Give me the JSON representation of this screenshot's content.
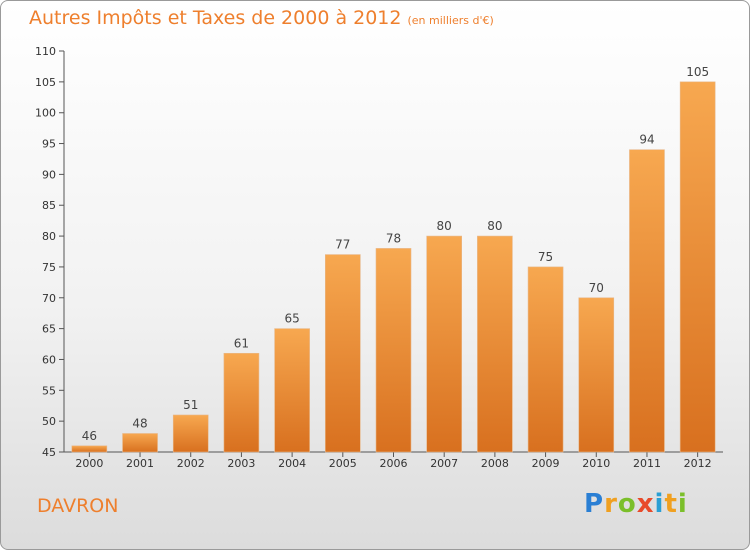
{
  "title": "Autres Impôts et Taxes de 2000 à 2012",
  "subtitle": "(en milliers d'€)",
  "location": "DAVRON",
  "brand": {
    "letters": [
      "P",
      "r",
      "o",
      "x",
      "i",
      "t",
      "i"
    ],
    "colors": [
      "#2a7fd4",
      "#f0a020",
      "#7bbf2a",
      "#e84a2a",
      "#2a9fd4",
      "#f0a020",
      "#7bbf2a"
    ]
  },
  "colors": {
    "bar_light": "#f7a850",
    "bar_dark": "#d8701f",
    "text_accent": "#ee7f2d",
    "axis": "#555555"
  },
  "chart_data": {
    "type": "bar",
    "categories": [
      "2000",
      "2001",
      "2002",
      "2003",
      "2004",
      "2005",
      "2006",
      "2007",
      "2008",
      "2009",
      "2010",
      "2011",
      "2012"
    ],
    "values": [
      46,
      48,
      51,
      61,
      65,
      77,
      78,
      80,
      80,
      75,
      70,
      94,
      105
    ],
    "data_labels": [
      "46",
      "48",
      "51",
      "61",
      "65",
      "77",
      "78",
      "80",
      "80",
      "75",
      "70",
      "94",
      "105"
    ],
    "title": "Autres Impôts et Taxes de 2000 à 2012",
    "xlabel": "",
    "ylabel": "",
    "ylim": [
      45,
      110
    ],
    "yticks": [
      45,
      50,
      55,
      60,
      65,
      70,
      75,
      80,
      85,
      90,
      95,
      100,
      105,
      110
    ],
    "grid": false,
    "legend": "none"
  }
}
